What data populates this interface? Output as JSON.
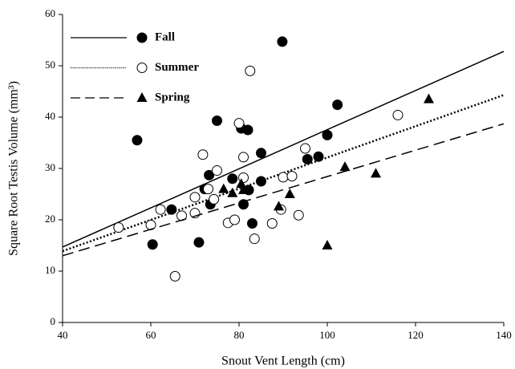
{
  "chart_data": {
    "type": "scatter",
    "xlabel": "Snout Vent Length (cm)",
    "ylabel": "Square Root Testis Volume (mm³)",
    "xlim": [
      40,
      140
    ],
    "ylim": [
      0,
      60
    ],
    "xticks": [
      40,
      60,
      80,
      100,
      120,
      140
    ],
    "yticks": [
      0,
      10,
      20,
      30,
      40,
      50,
      60
    ],
    "series": [
      {
        "name": "Fall",
        "color": "#000000",
        "marker": "filled-circle",
        "line": "solid",
        "x": [
          56.9,
          89.8,
          60.4,
          75,
          64.7,
          70.9,
          72.2,
          73.2,
          73.5,
          78.5,
          80.5,
          82,
          81,
          82.2,
          83,
          85,
          85,
          95.5,
          98,
          100,
          102.3
        ],
        "values": [
          35.5,
          54.7,
          15.2,
          39.3,
          22,
          15.6,
          26,
          28.7,
          23,
          28,
          37.8,
          37.5,
          23,
          25.8,
          19.3,
          33,
          27.5,
          31.8,
          32.3,
          36.5,
          42.4
        ],
        "fit_x": [
          40,
          140
        ],
        "fit_values": [
          14.7,
          52.8
        ]
      },
      {
        "name": "Summer",
        "color": "#000000",
        "marker": "open-circle",
        "line": "dotted",
        "x": [
          52.7,
          60,
          62.2,
          65.5,
          67,
          70,
          70,
          71.8,
          73,
          74.3,
          75,
          77.5,
          79,
          80,
          81,
          81,
          82.5,
          83.5,
          87.5,
          89.5,
          90,
          92,
          93.5,
          95,
          116
        ],
        "values": [
          18.5,
          19,
          22,
          9,
          20.8,
          24.4,
          21.3,
          32.7,
          26,
          24,
          29.6,
          19.4,
          20,
          38.8,
          32.2,
          28.2,
          49,
          16.3,
          19.3,
          22,
          28.3,
          28.5,
          20.9,
          33.9,
          40.4
        ],
        "fit_x": [
          40,
          140
        ],
        "fit_values": [
          13.9,
          44.3
        ]
      },
      {
        "name": "Spring",
        "color": "#000000",
        "marker": "triangle",
        "line": "dashed",
        "x": [
          76.5,
          78.5,
          80.5,
          81,
          89,
          91.5,
          100,
          104,
          111,
          123
        ],
        "values": [
          26,
          25.2,
          27,
          25.8,
          22.6,
          25,
          15,
          30.3,
          29,
          43.5
        ],
        "fit_x": [
          40,
          140
        ],
        "fit_values": [
          13,
          38.7
        ]
      }
    ]
  }
}
